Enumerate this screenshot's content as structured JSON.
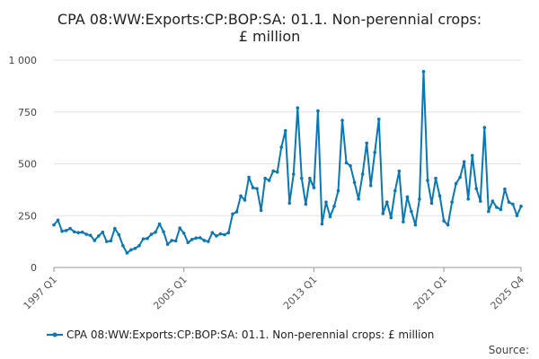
{
  "chart_data": {
    "type": "line",
    "title_lines": [
      "CPA 08:WW:Exports:CP:BOP:SA: 01.1. Non-perennial crops:",
      "£ million"
    ],
    "xlabel": "",
    "ylabel": "",
    "ylim": [
      0,
      1000
    ],
    "yticks": [
      0,
      250,
      500,
      750,
      1000
    ],
    "ytick_labels": [
      "0",
      "250",
      "500",
      "750",
      "1 000"
    ],
    "xtick_labels": [
      "1997 Q1",
      "2005 Q1",
      "2013 Q1",
      "2021 Q1",
      "2025 Q4"
    ],
    "xtick_indices": [
      0,
      32,
      64,
      96,
      115
    ],
    "grid": true,
    "legend_position": "bottom",
    "series": [
      {
        "name": "CPA 08:WW:Exports:CP:BOP:SA: 01.1. Non-perennial crops: £ million",
        "color": "#0a78b4",
        "x_start": "1997 Q1",
        "values": [
          205,
          228,
          175,
          178,
          188,
          172,
          168,
          170,
          160,
          155,
          130,
          152,
          170,
          125,
          128,
          188,
          158,
          105,
          70,
          85,
          92,
          105,
          138,
          140,
          160,
          170,
          210,
          172,
          112,
          130,
          128,
          190,
          165,
          120,
          135,
          142,
          143,
          130,
          125,
          168,
          152,
          162,
          158,
          168,
          258,
          268,
          345,
          325,
          435,
          385,
          380,
          275,
          430,
          420,
          465,
          460,
          580,
          660,
          310,
          450,
          770,
          430,
          305,
          430,
          385,
          755,
          210,
          315,
          245,
          295,
          370,
          710,
          505,
          490,
          410,
          330,
          450,
          600,
          395,
          555,
          715,
          260,
          315,
          240,
          370,
          465,
          220,
          340,
          270,
          205,
          330,
          945,
          420,
          310,
          430,
          345,
          225,
          205,
          315,
          405,
          435,
          510,
          330,
          540,
          380,
          320,
          675,
          270,
          320,
          290,
          280,
          378,
          315,
          305,
          250,
          295
        ]
      }
    ]
  },
  "source_label": "Source:"
}
